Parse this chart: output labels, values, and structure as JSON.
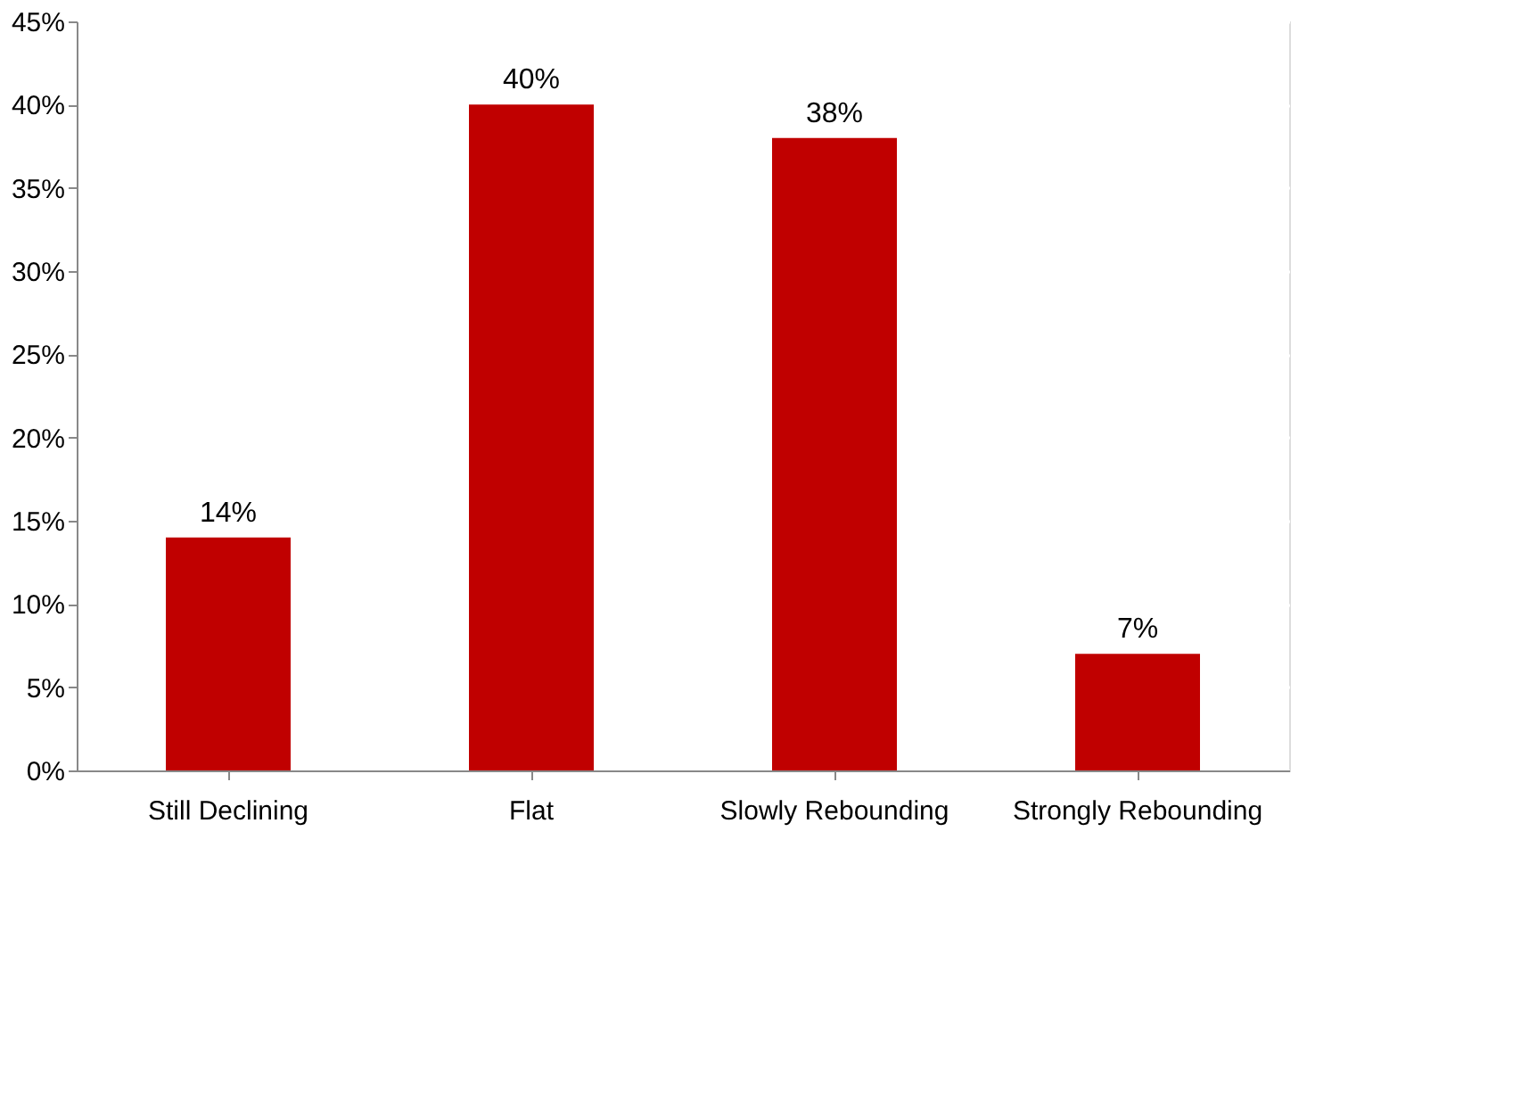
{
  "chart_data": {
    "type": "bar",
    "categories": [
      "Still Declining",
      "Flat",
      "Slowly Rebounding",
      "Strongly Rebounding"
    ],
    "values": [
      14,
      40,
      38,
      7
    ],
    "color": "#c00000",
    "value_labels": [
      "14%",
      "40%",
      "38%",
      "7%"
    ],
    "ylim": [
      0,
      45
    ],
    "yticks": [
      {
        "value": 0,
        "label": "0%"
      },
      {
        "value": 5,
        "label": "5%"
      },
      {
        "value": 10,
        "label": "10%"
      },
      {
        "value": 15,
        "label": "15%"
      },
      {
        "value": 20,
        "label": "20%"
      },
      {
        "value": 25,
        "label": "25%"
      },
      {
        "value": 30,
        "label": "30%"
      },
      {
        "value": 35,
        "label": "35%"
      },
      {
        "value": 40,
        "label": "40%"
      },
      {
        "value": 45,
        "label": "45%"
      }
    ],
    "grid": "y"
  }
}
